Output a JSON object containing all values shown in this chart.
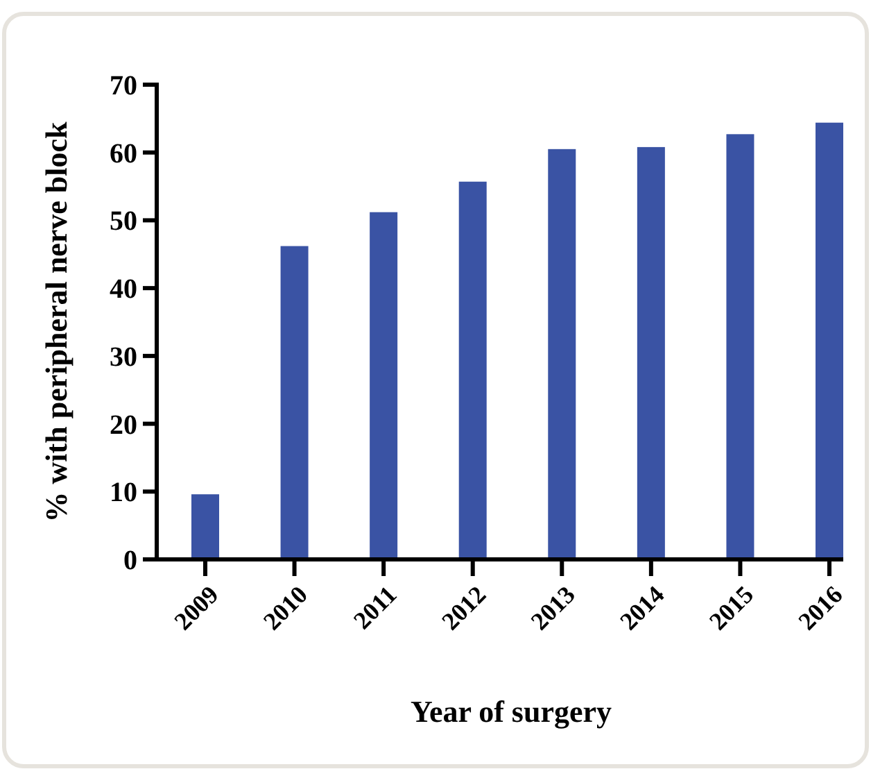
{
  "chart_data": {
    "type": "bar",
    "xlabel": "Year of surgery",
    "ylabel": "% with peripheral nerve block",
    "categories": [
      "2009",
      "2010",
      "2011",
      "2012",
      "2013",
      "2014",
      "2015",
      "2016"
    ],
    "values": [
      9.6,
      46.2,
      51.2,
      55.7,
      60.5,
      60.8,
      62.7,
      64.4
    ],
    "color": "#3a53a4",
    "ylim": [
      0,
      70
    ],
    "yticks": [
      0,
      10,
      20,
      30,
      40,
      50,
      60,
      70
    ],
    "grid": false
  }
}
